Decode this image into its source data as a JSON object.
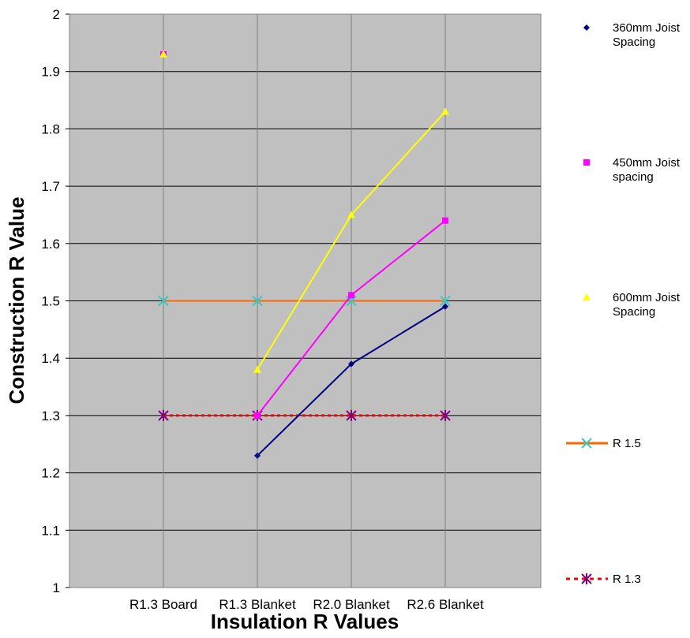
{
  "chart_data": {
    "type": "line",
    "xlabel": "Insulation R Values",
    "ylabel": "Construction R Value",
    "categories": [
      "R1.3 Board",
      "R1.3 Blanket",
      "R2.0 Blanket",
      "R2.6 Blanket"
    ],
    "ylim": [
      1,
      2
    ],
    "yticks": [
      "1",
      "1.1",
      "1.2",
      "1.3",
      "1.4",
      "1.5",
      "1.6",
      "1.7",
      "1.8",
      "1.9",
      "2"
    ],
    "grid": true,
    "legend_position": "right",
    "plot_background": "#c0c0c0",
    "series": [
      {
        "name": "360mm Joist Spacing",
        "lines": [
          "360mm Joist",
          "Spacing"
        ],
        "color": "#000080",
        "marker": "diamond",
        "values": [
          null,
          1.23,
          1.39,
          1.49
        ],
        "line": "solid"
      },
      {
        "name": "450mm Joist spacing",
        "lines": [
          "450mm Joist",
          "spacing"
        ],
        "color": "#ff00ff",
        "marker": "square",
        "values": [
          1.93,
          1.3,
          1.51,
          1.64
        ],
        "line": "solid"
      },
      {
        "name": "600mm Joist Spacing",
        "lines": [
          "600mm Joist",
          "Spacing"
        ],
        "color": "#ffff00",
        "marker": "triangle",
        "values": [
          1.93,
          1.38,
          1.65,
          1.83
        ],
        "line": "solid"
      },
      {
        "name": "R 1.5",
        "lines": [
          "R 1.5"
        ],
        "color": "#ff6600",
        "marker_color": "#33cccc",
        "marker": "x",
        "values": [
          1.5,
          1.5,
          1.5,
          1.5
        ],
        "line": "solid"
      },
      {
        "name": "R 1.3",
        "lines": [
          "R 1.3"
        ],
        "color": "#ff0000",
        "marker_color": "#800080",
        "marker": "star",
        "values": [
          1.3,
          1.3,
          1.3,
          1.3
        ],
        "line": "dotted"
      }
    ]
  }
}
